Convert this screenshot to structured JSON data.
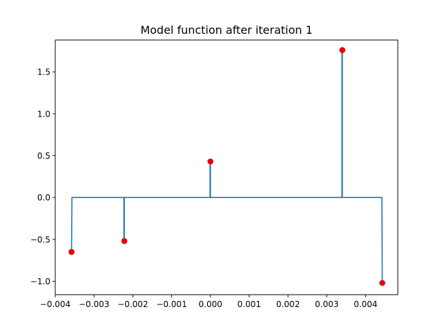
{
  "chart_data": {
    "type": "line",
    "title": "Model function after iteration 1",
    "xlabel": "",
    "ylabel": "",
    "xlim": [
      -0.004,
      0.00483
    ],
    "ylim": [
      -1.16,
      1.88
    ],
    "grid": false,
    "x_ticks": [
      -0.004,
      -0.003,
      -0.002,
      -0.001,
      0.0,
      0.001,
      0.002,
      0.003,
      0.004
    ],
    "x_tick_labels": [
      "−0.004",
      "−0.003",
      "−0.002",
      "−0.001",
      "0.000",
      "0.001",
      "0.002",
      "0.003",
      "0.004"
    ],
    "y_ticks": [
      -1.0,
      -0.5,
      0.0,
      0.5,
      1.0,
      1.5
    ],
    "y_tick_labels": [
      "−1.0",
      "−0.5",
      "0.0",
      "0.5",
      "1.0",
      "1.5"
    ],
    "series": [
      {
        "type": "line",
        "color": "#1f77b4",
        "x": [
          -0.00358,
          -0.00357,
          -0.00223,
          -0.00223,
          -0.00222,
          -0.00222,
          -1e-05,
          -1e-05,
          0.0,
          0.0,
          0.00339,
          0.00339,
          0.0034,
          0.0034,
          0.00442,
          0.00443
        ],
        "y": [
          -0.65,
          0.0,
          0.0,
          -0.52,
          -0.52,
          0.0,
          0.0,
          0.43,
          0.43,
          0.0,
          0.0,
          1.76,
          1.76,
          0.0,
          0.0,
          -1.02
        ]
      },
      {
        "type": "scatter",
        "color": "#e8000b",
        "x": [
          -0.00358,
          -0.00222,
          0.0,
          0.0034,
          0.00443
        ],
        "y": [
          -0.65,
          -0.52,
          0.43,
          1.76,
          -1.02
        ]
      }
    ]
  }
}
